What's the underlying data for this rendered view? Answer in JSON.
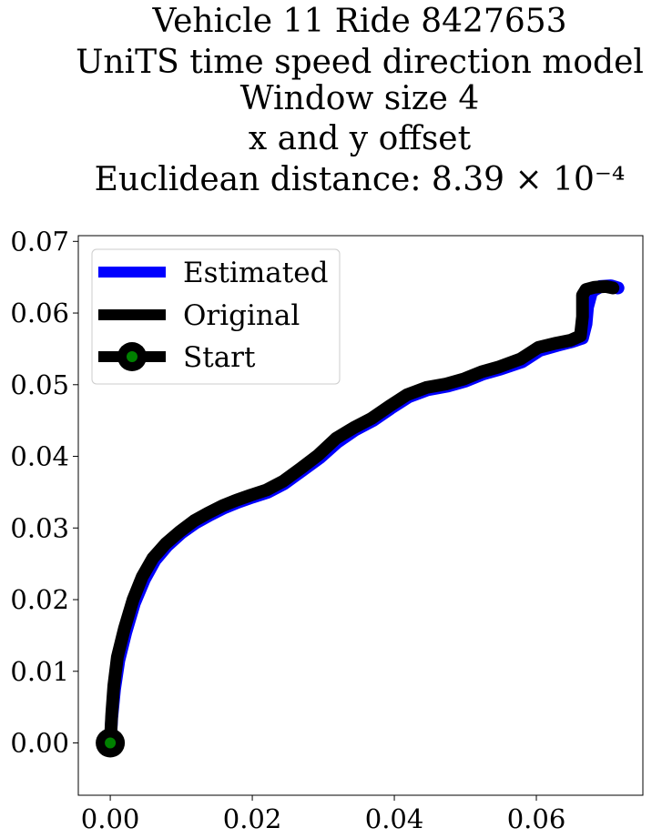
{
  "chart_data": {
    "type": "line",
    "title_lines": [
      "Vehicle 11 Ride 8427653",
      "UniTS time speed direction model",
      "Window size 4",
      "x and y offset",
      "Euclidean distance: 8.39 × 10⁻⁴"
    ],
    "xlabel": "",
    "ylabel": "",
    "xlim": [
      -0.0045,
      0.075
    ],
    "ylim": [
      -0.0073,
      0.0708
    ],
    "x_ticks": [
      0.0,
      0.02,
      0.04,
      0.06
    ],
    "x_tick_labels": [
      "0.00",
      "0.02",
      "0.04",
      "0.06"
    ],
    "y_ticks": [
      0.0,
      0.01,
      0.02,
      0.03,
      0.04,
      0.05,
      0.06,
      0.07
    ],
    "y_tick_labels": [
      "0.00",
      "0.01",
      "0.02",
      "0.03",
      "0.04",
      "0.05",
      "0.06",
      "0.07"
    ],
    "grid": false,
    "legend_position": "upper-left",
    "legend": [
      {
        "label": "Estimated",
        "color": "#0000ff"
      },
      {
        "label": "Original",
        "color": "#000000"
      },
      {
        "label": "Start",
        "color": "#000000",
        "marker_color": "#008000"
      }
    ],
    "series": [
      {
        "name": "Estimated",
        "color": "#0000ff",
        "x": [
          0.0,
          0.0002,
          0.0006,
          0.0012,
          0.0022,
          0.0034,
          0.0048,
          0.0063,
          0.008,
          0.01,
          0.012,
          0.014,
          0.016,
          0.018,
          0.02,
          0.0222,
          0.0245,
          0.027,
          0.0295,
          0.032,
          0.0345,
          0.037,
          0.0395,
          0.042,
          0.0447,
          0.0475,
          0.05,
          0.0525,
          0.055,
          0.058,
          0.0605,
          0.063,
          0.065,
          0.0665,
          0.067,
          0.0672,
          0.0678,
          0.069,
          0.0705,
          0.0715
        ],
        "y": [
          0.0,
          0.0035,
          0.0075,
          0.0115,
          0.0155,
          0.0195,
          0.0228,
          0.0255,
          0.0275,
          0.0293,
          0.0307,
          0.0318,
          0.0328,
          0.0336,
          0.0343,
          0.035,
          0.0362,
          0.038,
          0.0398,
          0.042,
          0.0437,
          0.045,
          0.0467,
          0.0483,
          0.0493,
          0.0498,
          0.0505,
          0.0515,
          0.0522,
          0.0532,
          0.0548,
          0.0555,
          0.056,
          0.0565,
          0.0585,
          0.0608,
          0.063,
          0.0637,
          0.0638,
          0.0635
        ]
      },
      {
        "name": "Original",
        "color": "#000000",
        "x": [
          0.0,
          0.0002,
          0.0005,
          0.001,
          0.002,
          0.0032,
          0.0045,
          0.006,
          0.0078,
          0.0098,
          0.0118,
          0.0138,
          0.0158,
          0.0178,
          0.0198,
          0.022,
          0.0243,
          0.0268,
          0.0293,
          0.0318,
          0.0343,
          0.0368,
          0.0393,
          0.0418,
          0.0445,
          0.0473,
          0.0498,
          0.0523,
          0.0548,
          0.0578,
          0.0603,
          0.0628,
          0.0648,
          0.0662,
          0.0665,
          0.0665,
          0.067,
          0.0682,
          0.0698,
          0.0708
        ],
        "y": [
          0.0,
          0.004,
          0.008,
          0.012,
          0.016,
          0.02,
          0.0232,
          0.0258,
          0.0278,
          0.0295,
          0.031,
          0.0321,
          0.0331,
          0.0339,
          0.0346,
          0.0353,
          0.0365,
          0.0383,
          0.0402,
          0.0425,
          0.044,
          0.0453,
          0.047,
          0.0486,
          0.0496,
          0.0501,
          0.0508,
          0.0518,
          0.0525,
          0.0536,
          0.0552,
          0.0558,
          0.0562,
          0.0568,
          0.0595,
          0.0625,
          0.0633,
          0.0636,
          0.0637,
          0.0635
        ]
      }
    ],
    "start_point": {
      "x": 0.0,
      "y": 0.0,
      "color": "#000000",
      "marker_color": "#008000"
    }
  }
}
